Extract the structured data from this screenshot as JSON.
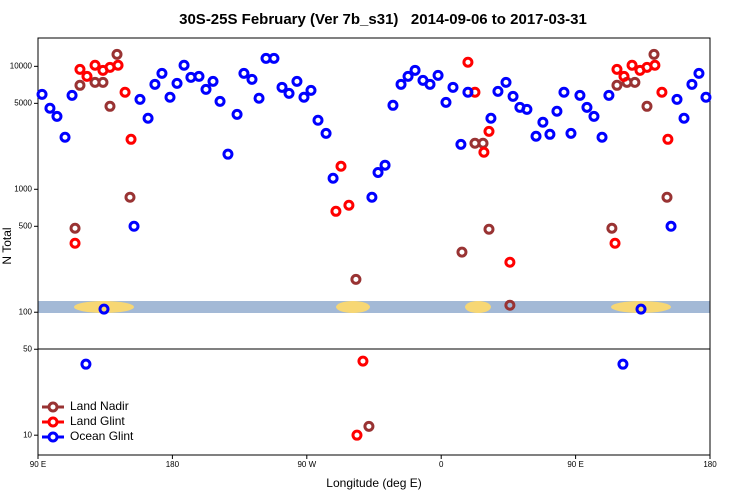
{
  "chart_data": {
    "type": "scatter",
    "title": "30S-25S February (Ver 7b_s31)   2014-09-06 to 2017-03-31",
    "xlabel": "Longitude (deg E)",
    "ylabel": "N Total",
    "xlim": [
      90,
      540
    ],
    "xticks": [
      {
        "value": 90,
        "label": "90 E"
      },
      180,
      {
        "value": 270,
        "label": "90 W"
      },
      {
        "value": 360,
        "label": "0"
      },
      {
        "value": 450,
        "label": "90 E"
      },
      {
        "value": 540,
        "label": "180"
      }
    ],
    "ylim": [
      6.9,
      17000
    ],
    "log_y": true,
    "yticks": [
      10,
      50,
      100,
      500,
      1000,
      5000,
      10000
    ],
    "legend": "lower left",
    "series": [
      {
        "name": "Land Nadir",
        "color": "#993333",
        "x": [
          114.8,
          118.1,
          128.2,
          133.5,
          138.2,
          142.9,
          151.6,
          302.9,
          311.6,
          373.9,
          382.6,
          388.0,
          392.0,
          406.0,
          474.3,
          477.7,
          484.4,
          489.7,
          497.8,
          502.5,
          511.2
        ],
        "values": [
          482,
          7010,
          7410,
          7410,
          4730,
          12500,
          861,
          185,
          11.8,
          308,
          2370,
          2370,
          473,
          114,
          482,
          7010,
          7410,
          7410,
          4730,
          12500,
          861
        ]
      },
      {
        "name": "Land Glint",
        "color": "#ff0000",
        "x": [
          114.8,
          118.1,
          122.8,
          128.2,
          133.5,
          138.2,
          143.6,
          148.3,
          152.3,
          289.5,
          292.9,
          298.2,
          303.6,
          307.6,
          377.9,
          382.6,
          388.6,
          392.0,
          406.0,
          476.4,
          477.7,
          482.4,
          487.8,
          493.1,
          497.8,
          503.1,
          507.8,
          511.8
        ],
        "values": [
          364,
          9450,
          8290,
          10200,
          9280,
          9800,
          10200,
          6150,
          2550,
          662,
          1540,
          741,
          10,
          40,
          10800,
          6150,
          2000,
          2960,
          255,
          364,
          9450,
          8290,
          10200,
          9280,
          9800,
          10200,
          6150,
          2550
        ]
      },
      {
        "name": "Ocean Glint",
        "color": "#0000ff",
        "x": [
          92.7,
          98.0,
          102.7,
          108.1,
          112.8,
          122.1,
          134.2,
          154.3,
          158.3,
          163.7,
          168.3,
          173.0,
          178.4,
          183.1,
          187.8,
          192.4,
          197.8,
          202.5,
          207.2,
          211.9,
          217.2,
          223.3,
          227.9,
          233.3,
          238.0,
          242.7,
          248.0,
          253.4,
          258.1,
          263.4,
          268.1,
          272.8,
          277.5,
          282.9,
          287.6,
          313.6,
          317.7,
          322.4,
          327.7,
          333.1,
          337.8,
          342.5,
          347.8,
          352.5,
          357.9,
          363.2,
          367.9,
          373.2,
          377.9,
          393.3,
          398.0,
          403.4,
          408.1,
          412.7,
          417.4,
          423.5,
          428.1,
          432.8,
          437.5,
          442.2,
          446.9,
          452.9,
          457.6,
          462.3,
          467.7,
          472.3,
          481.7,
          493.8,
          513.9,
          517.9,
          522.6,
          527.9,
          532.6,
          537.3
        ],
        "values": [
          5920,
          4560,
          3920,
          2650,
          5810,
          37.8,
          106,
          500,
          5390,
          3780,
          7140,
          8770,
          5600,
          7270,
          10200,
          8140,
          8290,
          6500,
          7550,
          5190,
          1930,
          4070,
          8770,
          7840,
          5500,
          11600,
          11600,
          6750,
          6030,
          7550,
          5600,
          6380,
          3640,
          2850,
          1230,
          861,
          1370,
          1570,
          4820,
          7140,
          8290,
          9280,
          7690,
          7140,
          8450,
          5090,
          6750,
          2320,
          6150,
          3780,
          6260,
          7410,
          5700,
          4640,
          4470,
          2700,
          3510,
          2800,
          4310,
          6150,
          2850,
          5810,
          4640,
          3920,
          2650,
          5810,
          37.8,
          106,
          500,
          5390,
          3780,
          7140,
          8770,
          5600
        ]
      }
    ]
  }
}
